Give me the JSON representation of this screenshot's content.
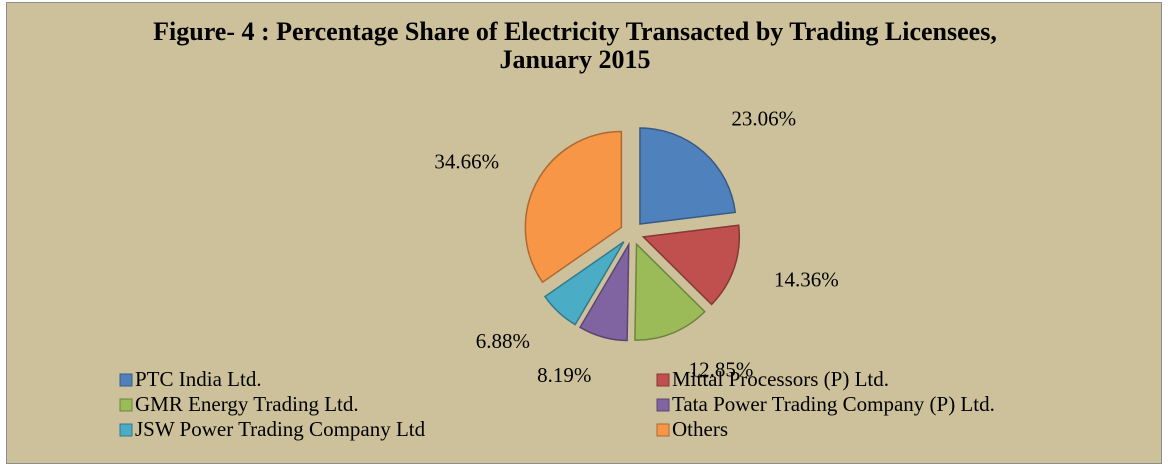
{
  "chart_data": {
    "type": "pie",
    "title": "Figure- 4 : Percentage Share of Electricity Transacted by Trading Licensees, January  2015",
    "categories": [
      "PTC India Ltd.",
      "Mittal Processors (P) Ltd.",
      "GMR Energy Trading Ltd.",
      "Tata Power Trading Company (P) Ltd.",
      "JSW Power Trading Company Ltd",
      "Others"
    ],
    "values": [
      23.06,
      14.36,
      12.85,
      8.19,
      6.88,
      34.66
    ],
    "value_labels": [
      "23.06%",
      "14.36%",
      "12.85%",
      "8.19%",
      "6.88%",
      "34.66%"
    ],
    "colors": [
      "#4f81bd",
      "#c0504d",
      "#9bbb59",
      "#8064a2",
      "#4bacc6",
      "#f79646"
    ],
    "legend": "bottom"
  }
}
